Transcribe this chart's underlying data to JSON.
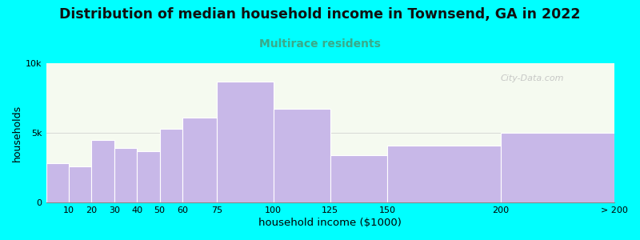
{
  "title": "Distribution of median household income in Townsend, GA in 2022",
  "subtitle": "Multirace residents",
  "xlabel": "household income ($1000)",
  "ylabel": "households",
  "background_outer": "#00FFFF",
  "bar_color": "#c8b8e8",
  "bar_edge_color": "#ffffff",
  "title_fontsize": 12.5,
  "subtitle_fontsize": 10,
  "subtitle_color": "#3aaa8a",
  "bin_edges": [
    0,
    10,
    20,
    30,
    40,
    50,
    60,
    75,
    100,
    125,
    150,
    200,
    250
  ],
  "bin_labels": [
    "10",
    "20",
    "30",
    "40",
    "50",
    "60",
    "75",
    "100",
    "125",
    "150",
    "200",
    "> 200"
  ],
  "values": [
    2800,
    2600,
    4500,
    3900,
    3700,
    5300,
    6100,
    8700,
    6700,
    3400,
    4100,
    5000
  ],
  "ylim": [
    0,
    10000
  ],
  "yticks": [
    0,
    5000,
    10000
  ],
  "ytick_labels": [
    "0",
    "5k",
    "10k"
  ],
  "watermark": "City-Data.com"
}
